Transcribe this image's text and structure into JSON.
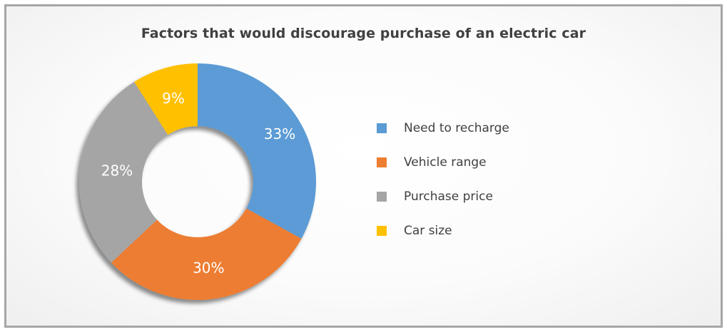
{
  "chart_data": {
    "type": "pie",
    "title": "Factors that would discourage purchase of an electric car",
    "categories": [
      "Need to recharge",
      "Vehicle range",
      "Purchase price",
      "Car size"
    ],
    "values": [
      33,
      30,
      28,
      9
    ],
    "labels": [
      "33%",
      "30%",
      "28%",
      "9%"
    ],
    "colors": [
      "#5b9bd5",
      "#ed7d31",
      "#a5a5a5",
      "#ffc000"
    ],
    "donut": true,
    "legend_position": "right"
  },
  "colors": {
    "border": "#a6a6a6",
    "text": "#404040",
    "data_label": "#ffffff"
  }
}
